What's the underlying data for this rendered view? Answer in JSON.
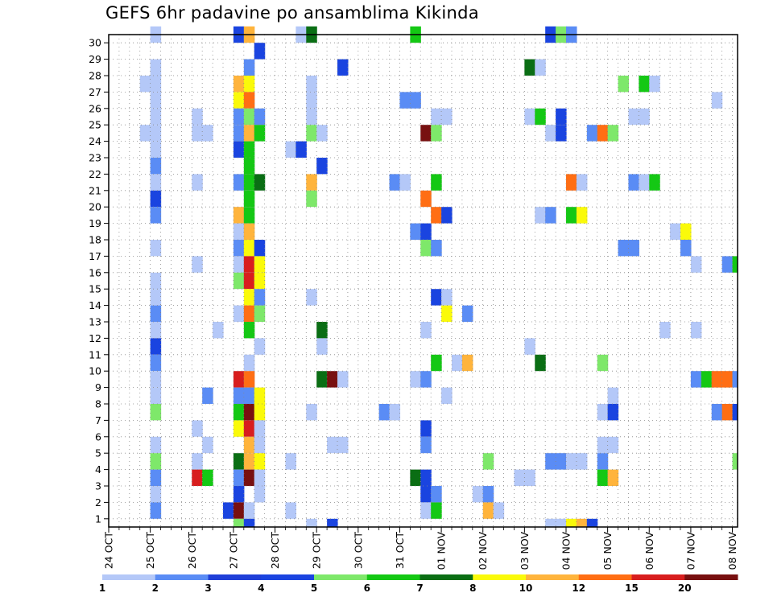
{
  "chart_data": {
    "type": "heatmap",
    "title": "GEFS 6hr padavine po ansamblima Kikinda",
    "y_ticks": [
      1,
      2,
      3,
      4,
      5,
      6,
      7,
      8,
      9,
      10,
      11,
      12,
      13,
      14,
      15,
      16,
      17,
      18,
      19,
      20,
      21,
      22,
      23,
      24,
      25,
      26,
      27,
      28,
      29,
      30
    ],
    "ylim": [
      0,
      30
    ],
    "x_ticks": [
      "24 OCT",
      "25 OCT",
      "26 OCT",
      "27 OCT",
      "28 OCT",
      "29 OCT",
      "30 OCT",
      "31 OCT",
      "01 NOV",
      "02 NOV",
      "03 NOV",
      "04 NOV",
      "05 NOV",
      "06 NOV",
      "07 NOV",
      "08 NOV"
    ],
    "x_step_hours": 6,
    "grid": true,
    "colorbar": {
      "levels": [
        "1",
        "2",
        "3",
        "4",
        "5",
        "6",
        "7",
        "8",
        "10",
        "12",
        "15",
        "20"
      ],
      "colors": [
        "#b4c8f8",
        "#5a8cf5",
        "#1f3fd8",
        "#1a44e0",
        "#7ee86a",
        "#14c814",
        "#0a6e14",
        "#fafa0a",
        "#ffb43c",
        "#ff6e14",
        "#d81e1e",
        "#781010"
      ]
    },
    "palette": {
      "c1": "#b4c8f8",
      "c2": "#5a8cf5",
      "c3": "#1a44e0",
      "c5": "#7ee86a",
      "c6": "#14c814",
      "c7": "#0a6e14",
      "c8": "#fafa0a",
      "c10": "#ffb43c",
      "c12": "#ff6e14",
      "c15": "#d81e1e",
      "c20": "#781010"
    },
    "cells": [
      [
        4,
        30,
        "c1"
      ],
      [
        12,
        30,
        "c3"
      ],
      [
        13,
        30,
        "c10"
      ],
      [
        18,
        30,
        "c1"
      ],
      [
        19,
        30,
        "c7"
      ],
      [
        29,
        30,
        "c6"
      ],
      [
        42,
        30,
        "c3"
      ],
      [
        43,
        30,
        "c5"
      ],
      [
        44,
        30,
        "c2"
      ],
      [
        14,
        29,
        "c3"
      ],
      [
        4,
        28,
        "c1"
      ],
      [
        13,
        28,
        "c2"
      ],
      [
        22,
        28,
        "c3"
      ],
      [
        40,
        28,
        "c7"
      ],
      [
        41,
        28,
        "c1"
      ],
      [
        3,
        27,
        "c1"
      ],
      [
        4,
        27,
        "c1"
      ],
      [
        12,
        27,
        "c10"
      ],
      [
        13,
        27,
        "c8"
      ],
      [
        19,
        27,
        "c1"
      ],
      [
        49,
        27,
        "c5"
      ],
      [
        51,
        27,
        "c6"
      ],
      [
        52,
        27,
        "c1"
      ],
      [
        4,
        26,
        "c1"
      ],
      [
        12,
        26,
        "c8"
      ],
      [
        13,
        26,
        "c12"
      ],
      [
        19,
        26,
        "c1"
      ],
      [
        28,
        26,
        "c2"
      ],
      [
        29,
        26,
        "c2"
      ],
      [
        58,
        26,
        "c1"
      ],
      [
        4,
        25,
        "c1"
      ],
      [
        8,
        25,
        "c1"
      ],
      [
        12,
        25,
        "c2"
      ],
      [
        13,
        25,
        "c5"
      ],
      [
        14,
        25,
        "c2"
      ],
      [
        19,
        25,
        "c1"
      ],
      [
        31,
        25,
        "c1"
      ],
      [
        32,
        25,
        "c1"
      ],
      [
        40,
        25,
        "c1"
      ],
      [
        41,
        25,
        "c6"
      ],
      [
        43,
        25,
        "c3"
      ],
      [
        50,
        25,
        "c1"
      ],
      [
        51,
        25,
        "c1"
      ],
      [
        3,
        24,
        "c1"
      ],
      [
        4,
        24,
        "c1"
      ],
      [
        8,
        24,
        "c1"
      ],
      [
        9,
        24,
        "c1"
      ],
      [
        12,
        24,
        "c2"
      ],
      [
        13,
        24,
        "c10"
      ],
      [
        14,
        24,
        "c6"
      ],
      [
        19,
        24,
        "c5"
      ],
      [
        20,
        24,
        "c1"
      ],
      [
        30,
        24,
        "c20"
      ],
      [
        31,
        24,
        "c5"
      ],
      [
        42,
        24,
        "c1"
      ],
      [
        43,
        24,
        "c3"
      ],
      [
        46,
        24,
        "c2"
      ],
      [
        47,
        24,
        "c12"
      ],
      [
        48,
        24,
        "c5"
      ],
      [
        4,
        23,
        "c1"
      ],
      [
        12,
        23,
        "c3"
      ],
      [
        13,
        23,
        "c6"
      ],
      [
        17,
        23,
        "c1"
      ],
      [
        18,
        23,
        "c3"
      ],
      [
        4,
        22,
        "c2"
      ],
      [
        13,
        22,
        "c6"
      ],
      [
        20,
        22,
        "c3"
      ],
      [
        4,
        21,
        "c1"
      ],
      [
        8,
        21,
        "c1"
      ],
      [
        12,
        21,
        "c2"
      ],
      [
        13,
        21,
        "c6"
      ],
      [
        14,
        21,
        "c7"
      ],
      [
        19,
        21,
        "c10"
      ],
      [
        27,
        21,
        "c2"
      ],
      [
        28,
        21,
        "c1"
      ],
      [
        31,
        21,
        "c6"
      ],
      [
        44,
        21,
        "c12"
      ],
      [
        45,
        21,
        "c1"
      ],
      [
        50,
        21,
        "c2"
      ],
      [
        51,
        21,
        "c1"
      ],
      [
        52,
        21,
        "c6"
      ],
      [
        4,
        20,
        "c3"
      ],
      [
        13,
        20,
        "c6"
      ],
      [
        19,
        20,
        "c5"
      ],
      [
        30,
        20,
        "c12"
      ],
      [
        4,
        19,
        "c2"
      ],
      [
        12,
        19,
        "c10"
      ],
      [
        13,
        19,
        "c6"
      ],
      [
        31,
        19,
        "c12"
      ],
      [
        32,
        19,
        "c3"
      ],
      [
        41,
        19,
        "c1"
      ],
      [
        42,
        19,
        "c2"
      ],
      [
        44,
        19,
        "c6"
      ],
      [
        45,
        19,
        "c8"
      ],
      [
        12,
        18,
        "c1"
      ],
      [
        13,
        18,
        "c10"
      ],
      [
        29,
        18,
        "c2"
      ],
      [
        30,
        18,
        "c3"
      ],
      [
        54,
        18,
        "c1"
      ],
      [
        55,
        18,
        "c8"
      ],
      [
        4,
        17,
        "c1"
      ],
      [
        12,
        17,
        "c2"
      ],
      [
        13,
        17,
        "c8"
      ],
      [
        14,
        17,
        "c3"
      ],
      [
        30,
        17,
        "c5"
      ],
      [
        31,
        17,
        "c2"
      ],
      [
        49,
        17,
        "c2"
      ],
      [
        50,
        17,
        "c2"
      ],
      [
        55,
        17,
        "c2"
      ],
      [
        8,
        16,
        "c1"
      ],
      [
        12,
        16,
        "c1"
      ],
      [
        13,
        16,
        "c15"
      ],
      [
        14,
        16,
        "c8"
      ],
      [
        56,
        16,
        "c1"
      ],
      [
        59,
        16,
        "c2"
      ],
      [
        60,
        16,
        "c6"
      ],
      [
        4,
        15,
        "c1"
      ],
      [
        12,
        15,
        "c5"
      ],
      [
        13,
        15,
        "c15"
      ],
      [
        14,
        15,
        "c8"
      ],
      [
        4,
        14,
        "c1"
      ],
      [
        13,
        14,
        "c8"
      ],
      [
        14,
        14,
        "c2"
      ],
      [
        19,
        14,
        "c1"
      ],
      [
        31,
        14,
        "c3"
      ],
      [
        32,
        14,
        "c1"
      ],
      [
        4,
        13,
        "c2"
      ],
      [
        12,
        13,
        "c1"
      ],
      [
        13,
        13,
        "c12"
      ],
      [
        14,
        13,
        "c5"
      ],
      [
        32,
        13,
        "c8"
      ],
      [
        34,
        13,
        "c2"
      ],
      [
        4,
        12,
        "c1"
      ],
      [
        10,
        12,
        "c1"
      ],
      [
        13,
        12,
        "c6"
      ],
      [
        20,
        12,
        "c7"
      ],
      [
        30,
        12,
        "c1"
      ],
      [
        53,
        12,
        "c1"
      ],
      [
        56,
        12,
        "c1"
      ],
      [
        4,
        11,
        "c3"
      ],
      [
        14,
        11,
        "c1"
      ],
      [
        20,
        11,
        "c1"
      ],
      [
        40,
        11,
        "c1"
      ],
      [
        4,
        10,
        "c2"
      ],
      [
        13,
        10,
        "c1"
      ],
      [
        31,
        10,
        "c6"
      ],
      [
        33,
        10,
        "c1"
      ],
      [
        34,
        10,
        "c10"
      ],
      [
        41,
        10,
        "c7"
      ],
      [
        47,
        10,
        "c5"
      ],
      [
        4,
        9,
        "c1"
      ],
      [
        12,
        9,
        "c15"
      ],
      [
        13,
        9,
        "c12"
      ],
      [
        20,
        9,
        "c7"
      ],
      [
        21,
        9,
        "c20"
      ],
      [
        22,
        9,
        "c1"
      ],
      [
        29,
        9,
        "c1"
      ],
      [
        30,
        9,
        "c2"
      ],
      [
        56,
        9,
        "c2"
      ],
      [
        57,
        9,
        "c6"
      ],
      [
        58,
        9,
        "c12"
      ],
      [
        59,
        9,
        "c12"
      ],
      [
        60,
        9,
        "c2"
      ],
      [
        4,
        8,
        "c1"
      ],
      [
        9,
        8,
        "c2"
      ],
      [
        12,
        8,
        "c2"
      ],
      [
        13,
        8,
        "c2"
      ],
      [
        14,
        8,
        "c8"
      ],
      [
        32,
        8,
        "c1"
      ],
      [
        48,
        8,
        "c1"
      ],
      [
        4,
        7,
        "c5"
      ],
      [
        12,
        7,
        "c6"
      ],
      [
        13,
        7,
        "c20"
      ],
      [
        14,
        7,
        "c8"
      ],
      [
        19,
        7,
        "c1"
      ],
      [
        26,
        7,
        "c2"
      ],
      [
        27,
        7,
        "c1"
      ],
      [
        47,
        7,
        "c1"
      ],
      [
        48,
        7,
        "c3"
      ],
      [
        58,
        7,
        "c2"
      ],
      [
        59,
        7,
        "c12"
      ],
      [
        60,
        7,
        "c3"
      ],
      [
        8,
        6,
        "c1"
      ],
      [
        12,
        6,
        "c8"
      ],
      [
        13,
        6,
        "c15"
      ],
      [
        14,
        6,
        "c1"
      ],
      [
        30,
        6,
        "c3"
      ],
      [
        4,
        5,
        "c1"
      ],
      [
        9,
        5,
        "c1"
      ],
      [
        13,
        5,
        "c10"
      ],
      [
        14,
        5,
        "c1"
      ],
      [
        21,
        5,
        "c1"
      ],
      [
        22,
        5,
        "c1"
      ],
      [
        30,
        5,
        "c2"
      ],
      [
        47,
        5,
        "c1"
      ],
      [
        48,
        5,
        "c1"
      ],
      [
        4,
        4,
        "c5"
      ],
      [
        8,
        4,
        "c1"
      ],
      [
        12,
        4,
        "c7"
      ],
      [
        13,
        4,
        "c10"
      ],
      [
        14,
        4,
        "c8"
      ],
      [
        17,
        4,
        "c1"
      ],
      [
        36,
        4,
        "c5"
      ],
      [
        42,
        4,
        "c2"
      ],
      [
        43,
        4,
        "c2"
      ],
      [
        44,
        4,
        "c1"
      ],
      [
        45,
        4,
        "c1"
      ],
      [
        47,
        4,
        "c2"
      ],
      [
        60,
        4,
        "c5"
      ],
      [
        4,
        3,
        "c2"
      ],
      [
        8,
        3,
        "c15"
      ],
      [
        9,
        3,
        "c6"
      ],
      [
        12,
        3,
        "c2"
      ],
      [
        13,
        3,
        "c20"
      ],
      [
        14,
        3,
        "c1"
      ],
      [
        29,
        3,
        "c7"
      ],
      [
        30,
        3,
        "c3"
      ],
      [
        39,
        3,
        "c1"
      ],
      [
        40,
        3,
        "c1"
      ],
      [
        47,
        3,
        "c6"
      ],
      [
        48,
        3,
        "c10"
      ],
      [
        4,
        2,
        "c1"
      ],
      [
        12,
        2,
        "c3"
      ],
      [
        14,
        2,
        "c1"
      ],
      [
        30,
        2,
        "c3"
      ],
      [
        31,
        2,
        "c2"
      ],
      [
        35,
        2,
        "c1"
      ],
      [
        36,
        2,
        "c2"
      ],
      [
        4,
        1,
        "c2"
      ],
      [
        11,
        1,
        "c3"
      ],
      [
        12,
        1,
        "c20"
      ],
      [
        13,
        1,
        "c1"
      ],
      [
        17,
        1,
        "c1"
      ],
      [
        30,
        1,
        "c1"
      ],
      [
        31,
        1,
        "c6"
      ],
      [
        36,
        1,
        "c10"
      ],
      [
        37,
        1,
        "c1"
      ],
      [
        12,
        0,
        "c5"
      ],
      [
        13,
        0,
        "c3"
      ],
      [
        19,
        0,
        "c1"
      ],
      [
        21,
        0,
        "c3"
      ],
      [
        42,
        0,
        "c1"
      ],
      [
        43,
        0,
        "c1"
      ],
      [
        44,
        0,
        "c8"
      ],
      [
        45,
        0,
        "c10"
      ],
      [
        46,
        0,
        "c3"
      ]
    ]
  }
}
